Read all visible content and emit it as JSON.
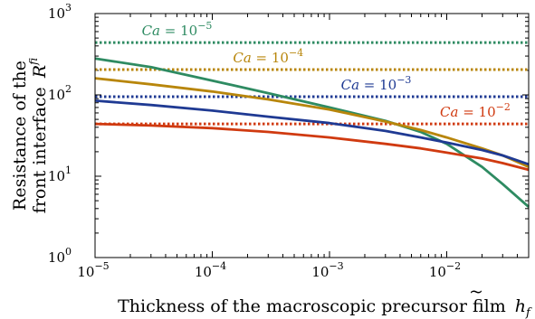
{
  "chart_data": {
    "type": "line",
    "xlabel": "Thickness of the macroscopic precursor film",
    "xlabel_symbol": "h",
    "xlabel_symbol_sub": "f",
    "ylabel_line1": "Resistance of the",
    "ylabel_line2": "front interface",
    "ylabel_symbol": "R",
    "ylabel_symbol_sup": "f",
    "ylabel_symbol_sub": "i",
    "x_scale": "log",
    "y_scale": "log",
    "xlim": [
      1e-05,
      0.05
    ],
    "ylim": [
      1,
      1000
    ],
    "x_ticks": [
      {
        "value": 1e-05,
        "base": "10",
        "exp": "−5"
      },
      {
        "value": 0.0001,
        "base": "10",
        "exp": "−4"
      },
      {
        "value": 0.001,
        "base": "10",
        "exp": "−3"
      },
      {
        "value": 0.01,
        "base": "10",
        "exp": "−2"
      }
    ],
    "y_ticks": [
      {
        "value": 1,
        "base": "10",
        "exp": "0"
      },
      {
        "value": 10,
        "base": "10",
        "exp": "1"
      },
      {
        "value": 100,
        "base": "10",
        "exp": "2"
      },
      {
        "value": 1000,
        "base": "10",
        "exp": "3"
      }
    ],
    "series": [
      {
        "name": "Ca = 10^-5",
        "label_base": "Ca = 10",
        "label_exp": "−5",
        "color": "#2e8b62",
        "asymptote": 440,
        "x": [
          1e-05,
          3e-05,
          0.0001,
          0.0003,
          0.001,
          0.003,
          0.006,
          0.01,
          0.02,
          0.03,
          0.05
        ],
        "y": [
          280,
          220,
          150,
          105,
          70,
          48,
          35,
          25,
          13,
          8,
          4.2
        ]
      },
      {
        "name": "Ca = 10^-4",
        "label_base": "Ca = 10",
        "label_exp": "−4",
        "color": "#b8860b",
        "asymptote": 205,
        "x": [
          1e-05,
          3e-05,
          0.0001,
          0.0003,
          0.001,
          0.003,
          0.006,
          0.01,
          0.02,
          0.03,
          0.05
        ],
        "y": [
          160,
          135,
          110,
          88,
          66,
          47,
          37,
          30,
          22,
          18,
          13
        ]
      },
      {
        "name": "Ca = 10^-3",
        "label_base": "Ca = 10",
        "label_exp": "−3",
        "color": "#1f3a93",
        "asymptote": 95,
        "x": [
          1e-05,
          3e-05,
          0.0001,
          0.0003,
          0.001,
          0.003,
          0.006,
          0.01,
          0.02,
          0.03,
          0.05
        ],
        "y": [
          85,
          75,
          64,
          54,
          45,
          36,
          30,
          26,
          21,
          18,
          14
        ]
      },
      {
        "name": "Ca = 10^-2",
        "label_base": "Ca = 10",
        "label_exp": "−2",
        "color": "#d03a10",
        "asymptote": 44,
        "x": [
          1e-05,
          3e-05,
          0.0001,
          0.0003,
          0.001,
          0.003,
          0.006,
          0.01,
          0.02,
          0.03,
          0.05
        ],
        "y": [
          44,
          42,
          39,
          35,
          30,
          25,
          22,
          19.5,
          16.5,
          14.5,
          12
        ]
      }
    ]
  }
}
